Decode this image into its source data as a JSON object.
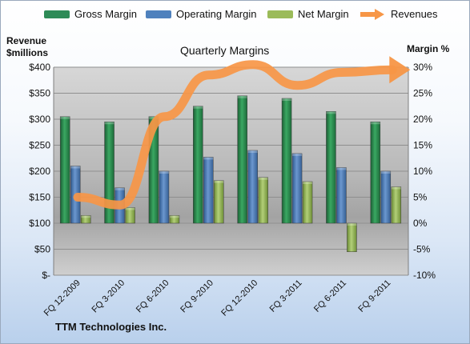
{
  "legend": [
    {
      "label": "Gross Margin",
      "color": "#2e8b57",
      "kind": "bar"
    },
    {
      "label": "Operating Margin",
      "color": "#4f81bd",
      "kind": "bar"
    },
    {
      "label": "Net Margin",
      "color": "#9bbb59",
      "kind": "bar"
    },
    {
      "label": "Revenues",
      "color": "#f79646",
      "kind": "arrow"
    }
  ],
  "footer": "TTM Technologies Inc.",
  "chart_data": {
    "type": "bar",
    "title": "Quarterly Margins",
    "ylabel_left": [
      "Revenue",
      "$millions"
    ],
    "ylabel_right": "Margin %",
    "categories": [
      "FQ 12-2009",
      "FQ 3-2010",
      "FQ 6-2010",
      "FQ 9-2010",
      "FQ 12-2010",
      "FQ 3-2011",
      "FQ 6-2011",
      "FQ 9-2011"
    ],
    "series": [
      {
        "name": "Gross Margin",
        "axis": "right",
        "color": "#2e8b57",
        "values": [
          20.5,
          19.5,
          20.5,
          22.5,
          24.5,
          24,
          21.5,
          19.5
        ]
      },
      {
        "name": "Operating Margin",
        "axis": "right",
        "color": "#4f81bd",
        "values": [
          11,
          6.8,
          10,
          12.7,
          14,
          13.4,
          10.7,
          10
        ]
      },
      {
        "name": "Net Margin",
        "axis": "right",
        "color": "#9bbb59",
        "values": [
          1.5,
          3,
          1.5,
          8.2,
          8.8,
          8,
          -5.5,
          7
        ]
      },
      {
        "name": "Revenues",
        "axis": "left",
        "type": "line",
        "color": "#f79646",
        "values": [
          150,
          135,
          305,
          385,
          405,
          365,
          390,
          395
        ]
      }
    ],
    "left_axis": {
      "ylim": [
        0,
        400
      ],
      "ticks": [
        "$-",
        "$50",
        "$100",
        "$150",
        "$200",
        "$250",
        "$300",
        "$350",
        "$400"
      ]
    },
    "right_axis": {
      "ylim": [
        -10,
        30
      ],
      "ticks": [
        "-10%",
        "-5%",
        "0%",
        "5%",
        "10%",
        "15%",
        "20%",
        "25%",
        "30%"
      ]
    },
    "grid": true,
    "legend_position": "top"
  }
}
